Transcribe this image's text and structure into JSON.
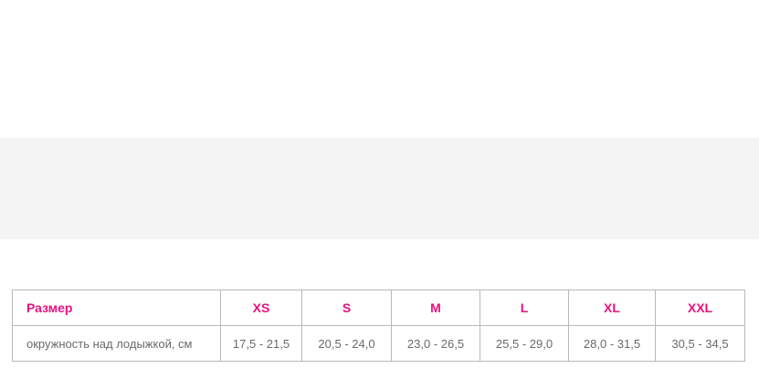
{
  "table": {
    "header": [
      "Размер",
      "XS",
      "S",
      "M",
      "L",
      "XL",
      "XXL"
    ],
    "rows": [
      [
        "окружность над лодыжкой, см",
        "17,5 - 21,5",
        "20,5 - 24,0",
        "23,0 - 26,5",
        "25,5 - 29,0",
        "28,0 - 31,5",
        "30,5 - 34,5"
      ]
    ]
  },
  "colors": {
    "accent": "#e8117f",
    "text": "#6a6a6a",
    "panel": "#f4f4f4",
    "border": "#b9b9b9"
  }
}
